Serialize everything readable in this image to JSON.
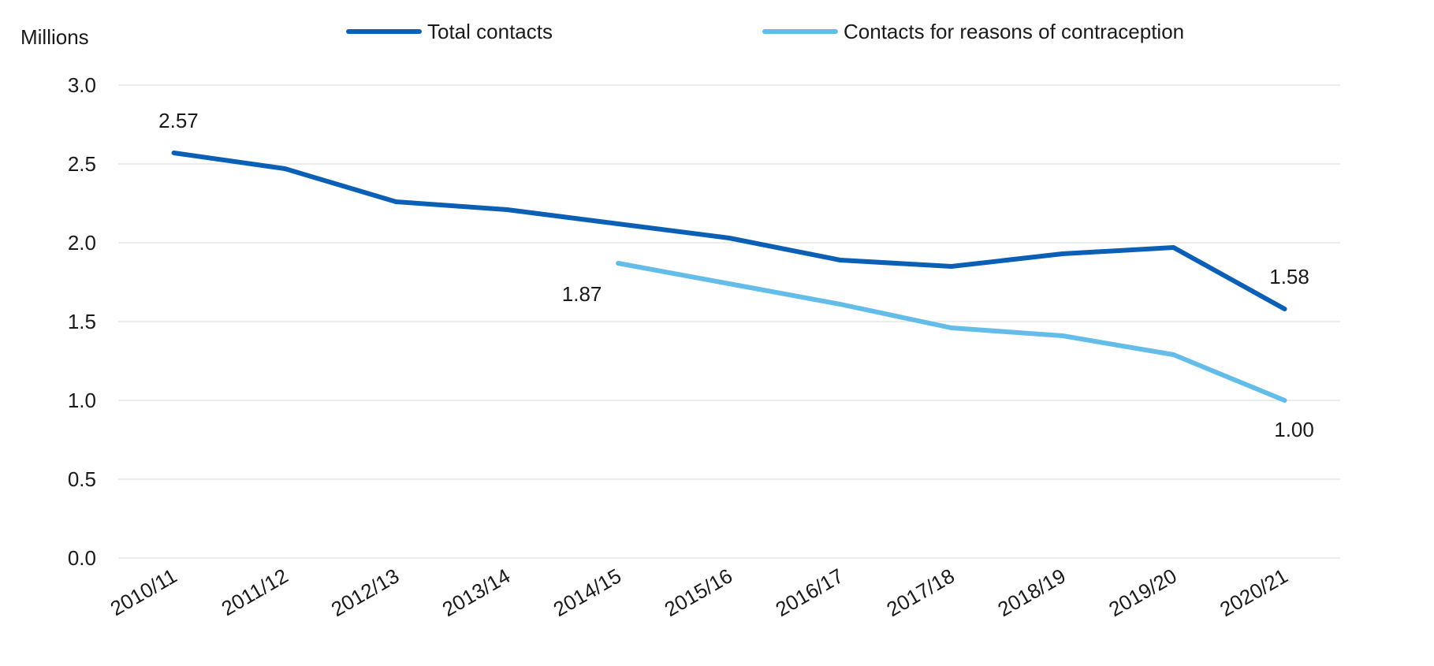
{
  "chart_data": {
    "type": "line",
    "ylabel": "Millions",
    "ylim": [
      0,
      3.0
    ],
    "yticks": [
      0.0,
      0.5,
      1.0,
      1.5,
      2.0,
      2.5,
      3.0
    ],
    "ytick_labels": [
      "0.0",
      "0.5",
      "1.0",
      "1.5",
      "2.0",
      "2.5",
      "3.0"
    ],
    "categories": [
      "2010/11",
      "2011/12",
      "2012/13",
      "2013/14",
      "2014/15",
      "2015/16",
      "2016/17",
      "2017/18",
      "2018/19",
      "2019/20",
      "2020/21"
    ],
    "grid": true,
    "legend_position": "top",
    "series": [
      {
        "name": "Total contacts",
        "color": "#0b5fb5",
        "values": [
          2.57,
          2.47,
          2.26,
          2.21,
          2.12,
          2.03,
          1.89,
          1.85,
          1.93,
          1.97,
          1.58
        ]
      },
      {
        "name": "Contacts for reasons of contraception",
        "color": "#63bde8",
        "values": [
          null,
          null,
          null,
          null,
          1.87,
          1.74,
          1.61,
          1.46,
          1.41,
          1.29,
          1.0
        ]
      }
    ],
    "annotations": [
      {
        "series": 0,
        "index": 0,
        "text": "2.57",
        "placement": "above"
      },
      {
        "series": 0,
        "index": 10,
        "text": "1.58",
        "placement": "above"
      },
      {
        "series": 1,
        "index": 4,
        "text": "1.87",
        "placement": "below-left"
      },
      {
        "series": 1,
        "index": 10,
        "text": "1.00",
        "placement": "below"
      }
    ]
  }
}
